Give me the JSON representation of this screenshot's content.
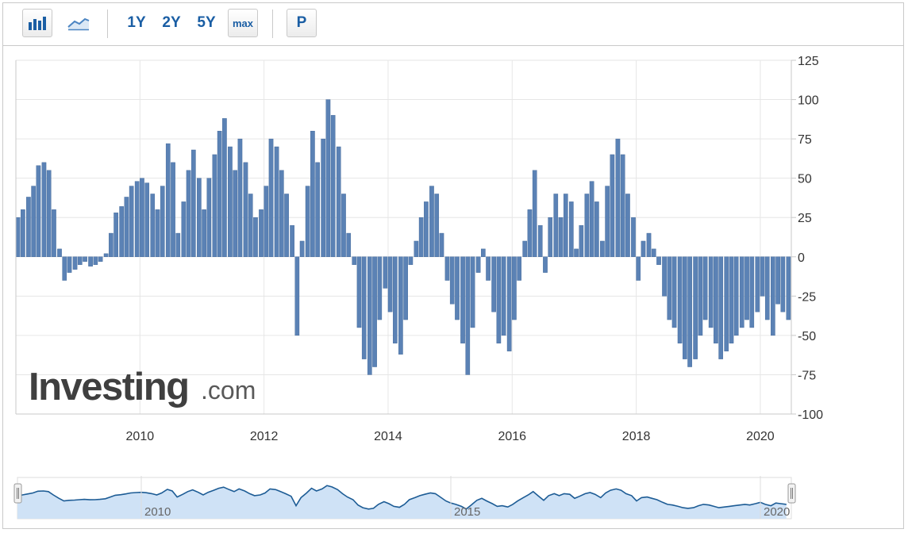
{
  "toolbar": {
    "bar_chart_icon": "bar-chart-icon",
    "line_chart_icon": "line-chart-icon",
    "ranges": [
      "1Y",
      "2Y",
      "5Y"
    ],
    "max_label": "max",
    "p_label": "P"
  },
  "watermark": {
    "brand": "Investing",
    "suffix": ".com"
  },
  "colors": {
    "bar": "#5b82b5",
    "bar_edge": "#3d6496",
    "navigator_line": "#1d5c95",
    "navigator_fill": "#cfe2f6",
    "grid": "#e6e6e6",
    "axis": "#c9c9c9"
  },
  "navigator": {
    "tick_labels": [
      "2010",
      "2015",
      "2020"
    ]
  },
  "chart_data": {
    "type": "bar",
    "title": "",
    "xlabel": "",
    "ylabel": "",
    "ylim": [
      -100,
      125
    ],
    "y_ticks": [
      125,
      100,
      75,
      50,
      25,
      0,
      -25,
      -50,
      -75,
      -100
    ],
    "x_ticks": [
      "2010",
      "2012",
      "2014",
      "2016",
      "2018",
      "2020"
    ],
    "x_range": [
      2008.0,
      2020.5
    ],
    "grid": true,
    "legend": "none",
    "series": [
      {
        "values": [
          {
            "x": 2008.0,
            "y": 25
          },
          {
            "x": 2008.08,
            "y": 30
          },
          {
            "x": 2008.17,
            "y": 38
          },
          {
            "x": 2008.25,
            "y": 45
          },
          {
            "x": 2008.33,
            "y": 58
          },
          {
            "x": 2008.42,
            "y": 60
          },
          {
            "x": 2008.5,
            "y": 55
          },
          {
            "x": 2008.58,
            "y": 30
          },
          {
            "x": 2008.67,
            "y": 5
          },
          {
            "x": 2008.75,
            "y": -15
          },
          {
            "x": 2008.83,
            "y": -10
          },
          {
            "x": 2008.92,
            "y": -8
          },
          {
            "x": 2009.0,
            "y": -5
          },
          {
            "x": 2009.08,
            "y": -3
          },
          {
            "x": 2009.17,
            "y": -6
          },
          {
            "x": 2009.25,
            "y": -5
          },
          {
            "x": 2009.33,
            "y": -3
          },
          {
            "x": 2009.42,
            "y": 2
          },
          {
            "x": 2009.5,
            "y": 15
          },
          {
            "x": 2009.58,
            "y": 28
          },
          {
            "x": 2009.67,
            "y": 32
          },
          {
            "x": 2009.75,
            "y": 38
          },
          {
            "x": 2009.83,
            "y": 45
          },
          {
            "x": 2009.92,
            "y": 48
          },
          {
            "x": 2010.0,
            "y": 50
          },
          {
            "x": 2010.08,
            "y": 47
          },
          {
            "x": 2010.17,
            "y": 40
          },
          {
            "x": 2010.25,
            "y": 30
          },
          {
            "x": 2010.33,
            "y": 45
          },
          {
            "x": 2010.42,
            "y": 72
          },
          {
            "x": 2010.5,
            "y": 60
          },
          {
            "x": 2010.58,
            "y": 15
          },
          {
            "x": 2010.67,
            "y": 35
          },
          {
            "x": 2010.75,
            "y": 55
          },
          {
            "x": 2010.83,
            "y": 68
          },
          {
            "x": 2010.92,
            "y": 50
          },
          {
            "x": 2011.0,
            "y": 30
          },
          {
            "x": 2011.08,
            "y": 50
          },
          {
            "x": 2011.17,
            "y": 65
          },
          {
            "x": 2011.25,
            "y": 80
          },
          {
            "x": 2011.33,
            "y": 88
          },
          {
            "x": 2011.42,
            "y": 70
          },
          {
            "x": 2011.5,
            "y": 55
          },
          {
            "x": 2011.58,
            "y": 75
          },
          {
            "x": 2011.67,
            "y": 60
          },
          {
            "x": 2011.75,
            "y": 40
          },
          {
            "x": 2011.83,
            "y": 25
          },
          {
            "x": 2011.92,
            "y": 30
          },
          {
            "x": 2012.0,
            "y": 45
          },
          {
            "x": 2012.08,
            "y": 75
          },
          {
            "x": 2012.17,
            "y": 70
          },
          {
            "x": 2012.25,
            "y": 55
          },
          {
            "x": 2012.33,
            "y": 40
          },
          {
            "x": 2012.42,
            "y": 20
          },
          {
            "x": 2012.5,
            "y": -50
          },
          {
            "x": 2012.58,
            "y": 10
          },
          {
            "x": 2012.67,
            "y": 45
          },
          {
            "x": 2012.75,
            "y": 80
          },
          {
            "x": 2012.83,
            "y": 60
          },
          {
            "x": 2012.92,
            "y": 75
          },
          {
            "x": 2013.0,
            "y": 100
          },
          {
            "x": 2013.08,
            "y": 90
          },
          {
            "x": 2013.17,
            "y": 70
          },
          {
            "x": 2013.25,
            "y": 40
          },
          {
            "x": 2013.33,
            "y": 15
          },
          {
            "x": 2013.42,
            "y": -5
          },
          {
            "x": 2013.5,
            "y": -45
          },
          {
            "x": 2013.58,
            "y": -65
          },
          {
            "x": 2013.67,
            "y": -75
          },
          {
            "x": 2013.75,
            "y": -70
          },
          {
            "x": 2013.83,
            "y": -40
          },
          {
            "x": 2013.92,
            "y": -20
          },
          {
            "x": 2014.0,
            "y": -35
          },
          {
            "x": 2014.08,
            "y": -55
          },
          {
            "x": 2014.17,
            "y": -62
          },
          {
            "x": 2014.25,
            "y": -40
          },
          {
            "x": 2014.33,
            "y": -5
          },
          {
            "x": 2014.42,
            "y": 10
          },
          {
            "x": 2014.5,
            "y": 25
          },
          {
            "x": 2014.58,
            "y": 35
          },
          {
            "x": 2014.67,
            "y": 45
          },
          {
            "x": 2014.75,
            "y": 40
          },
          {
            "x": 2014.83,
            "y": 15
          },
          {
            "x": 2014.92,
            "y": -15
          },
          {
            "x": 2015.0,
            "y": -30
          },
          {
            "x": 2015.08,
            "y": -40
          },
          {
            "x": 2015.17,
            "y": -55
          },
          {
            "x": 2015.25,
            "y": -75
          },
          {
            "x": 2015.33,
            "y": -45
          },
          {
            "x": 2015.42,
            "y": -10
          },
          {
            "x": 2015.5,
            "y": 5
          },
          {
            "x": 2015.58,
            "y": -15
          },
          {
            "x": 2015.67,
            "y": -35
          },
          {
            "x": 2015.75,
            "y": -55
          },
          {
            "x": 2015.83,
            "y": -50
          },
          {
            "x": 2015.92,
            "y": -60
          },
          {
            "x": 2016.0,
            "y": -40
          },
          {
            "x": 2016.08,
            "y": -15
          },
          {
            "x": 2016.17,
            "y": 10
          },
          {
            "x": 2016.25,
            "y": 30
          },
          {
            "x": 2016.33,
            "y": 55
          },
          {
            "x": 2016.42,
            "y": 20
          },
          {
            "x": 2016.5,
            "y": -10
          },
          {
            "x": 2016.58,
            "y": 25
          },
          {
            "x": 2016.67,
            "y": 40
          },
          {
            "x": 2016.75,
            "y": 25
          },
          {
            "x": 2016.83,
            "y": 40
          },
          {
            "x": 2016.92,
            "y": 35
          },
          {
            "x": 2017.0,
            "y": 5
          },
          {
            "x": 2017.08,
            "y": 20
          },
          {
            "x": 2017.17,
            "y": 40
          },
          {
            "x": 2017.25,
            "y": 48
          },
          {
            "x": 2017.33,
            "y": 35
          },
          {
            "x": 2017.42,
            "y": 10
          },
          {
            "x": 2017.5,
            "y": 45
          },
          {
            "x": 2017.58,
            "y": 65
          },
          {
            "x": 2017.67,
            "y": 75
          },
          {
            "x": 2017.75,
            "y": 65
          },
          {
            "x": 2017.83,
            "y": 40
          },
          {
            "x": 2017.92,
            "y": 25
          },
          {
            "x": 2018.0,
            "y": -15
          },
          {
            "x": 2018.08,
            "y": 10
          },
          {
            "x": 2018.17,
            "y": 15
          },
          {
            "x": 2018.25,
            "y": 5
          },
          {
            "x": 2018.33,
            "y": -5
          },
          {
            "x": 2018.42,
            "y": -25
          },
          {
            "x": 2018.5,
            "y": -40
          },
          {
            "x": 2018.58,
            "y": -45
          },
          {
            "x": 2018.67,
            "y": -55
          },
          {
            "x": 2018.75,
            "y": -65
          },
          {
            "x": 2018.83,
            "y": -70
          },
          {
            "x": 2018.92,
            "y": -65
          },
          {
            "x": 2019.0,
            "y": -50
          },
          {
            "x": 2019.08,
            "y": -40
          },
          {
            "x": 2019.17,
            "y": -45
          },
          {
            "x": 2019.25,
            "y": -55
          },
          {
            "x": 2019.33,
            "y": -65
          },
          {
            "x": 2019.42,
            "y": -60
          },
          {
            "x": 2019.5,
            "y": -55
          },
          {
            "x": 2019.58,
            "y": -50
          },
          {
            "x": 2019.67,
            "y": -45
          },
          {
            "x": 2019.75,
            "y": -40
          },
          {
            "x": 2019.83,
            "y": -45
          },
          {
            "x": 2019.92,
            "y": -35
          },
          {
            "x": 2020.0,
            "y": -25
          },
          {
            "x": 2020.08,
            "y": -40
          },
          {
            "x": 2020.17,
            "y": -50
          },
          {
            "x": 2020.25,
            "y": -30
          },
          {
            "x": 2020.33,
            "y": -35
          },
          {
            "x": 2020.42,
            "y": -40
          }
        ]
      }
    ]
  }
}
